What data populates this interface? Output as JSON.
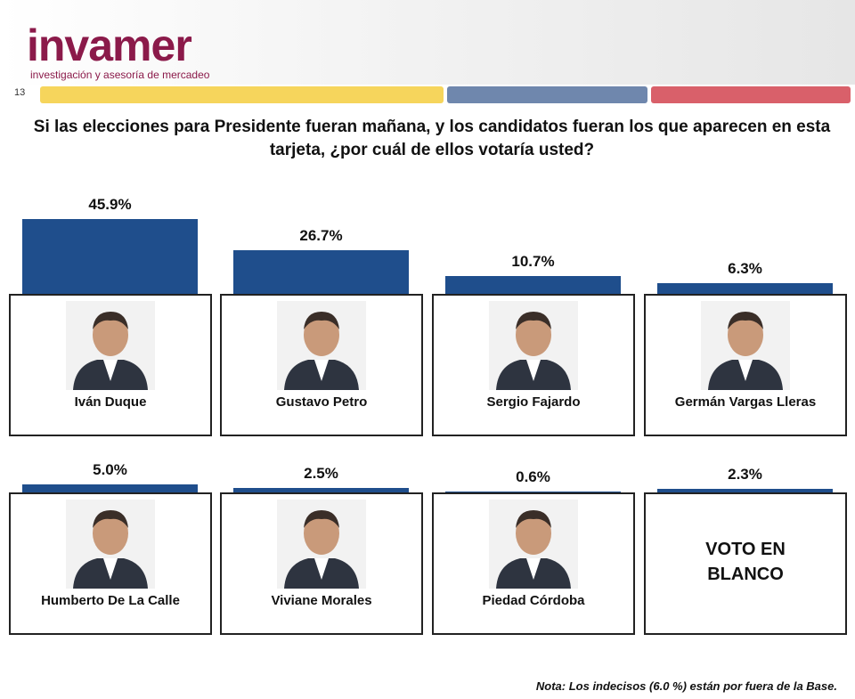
{
  "header": {
    "logo": "invamer",
    "tagline": "investigación y asesoría de mercadeo",
    "page_number": "13"
  },
  "chart_data": {
    "type": "bar",
    "title": "Si las elecciones para Presidente fueran mañana, y los candidatos fueran los que aparecen en esta tarjeta, ¿por cuál de ellos votaría usted?",
    "categories": [
      "Iván Duque",
      "Gustavo Petro",
      "Sergio Fajardo",
      "Germán Vargas Lleras",
      "Humberto De La Calle",
      "Viviane Morales",
      "Piedad Córdoba",
      "VOTO EN BLANCO"
    ],
    "values": [
      45.9,
      26.7,
      10.7,
      6.3,
      5.0,
      2.5,
      0.6,
      2.3
    ],
    "value_labels": [
      "45.9%",
      "26.7%",
      "10.7%",
      "6.3%",
      "5.0%",
      "2.5%",
      "0.6%",
      "2.3%"
    ],
    "color": "#1f4e8c",
    "note": "Nota: Los indecisos (6.0 %) están por fuera de la Base."
  }
}
